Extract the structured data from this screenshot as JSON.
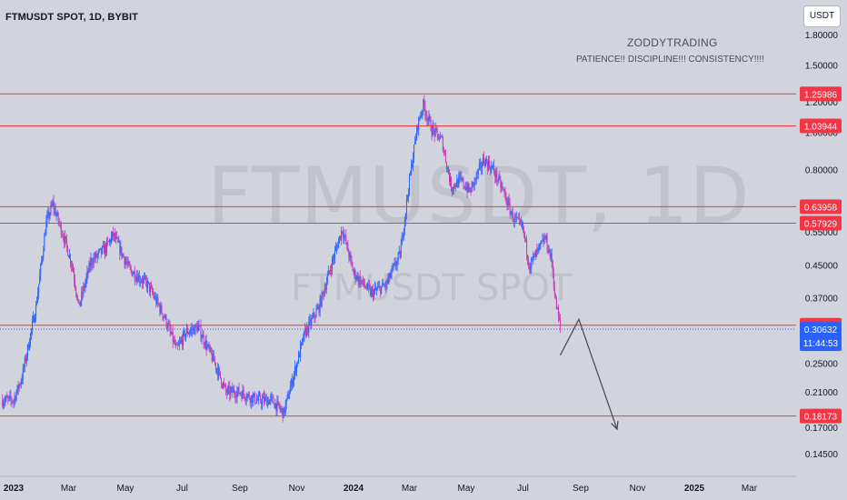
{
  "header": {
    "symbol_title": "FTMUSDT SPOT, 1D, BYBIT",
    "currency_button": "USDT"
  },
  "annotation": {
    "title": "ZODDYTRADING",
    "subtitle": "PATIENCE!! DISCIPLINE!!! CONSISTENCY!!!!"
  },
  "watermark": {
    "main": "FTMUSDT, 1D",
    "sub": "FTMUSDT SPOT"
  },
  "colors": {
    "background": "#d1d4dc",
    "bull_candle": "#2962ff",
    "bear_candle": "#c73ab5",
    "level_line": "#f23645",
    "current_price": "#2962ff",
    "projection": "#434651"
  },
  "chart_data": {
    "type": "candlestick",
    "symbol": "FTMUSDT",
    "interval": "1D",
    "exchange": "BYBIT",
    "y_scale": "log",
    "ylim": [
      0.13,
      2.0
    ],
    "y_ticks": [
      "1.80000",
      "1.50000",
      "1.20000",
      "1.00000",
      "0.80000",
      "0.65000",
      "0.55000",
      "0.45000",
      "0.37000",
      "0.30000",
      "0.25000",
      "0.21000",
      "0.17000",
      "0.14500"
    ],
    "x_ticks": [
      "2023",
      "Mar",
      "May",
      "Jul",
      "Sep",
      "Nov",
      "2024",
      "Mar",
      "May",
      "Jul",
      "Sep",
      "Nov",
      "2025",
      "Mar"
    ],
    "x_range": [
      "2022-12-20",
      "2025-04-12"
    ],
    "horizontal_levels": [
      {
        "price": 1.25986,
        "label": "1.25986"
      },
      {
        "price": 1.03944,
        "label": "1.03944"
      },
      {
        "price": 0.63958,
        "label": "0.63958"
      },
      {
        "price": 0.57929,
        "label": "0.57929"
      },
      {
        "price": 0.31381,
        "label": "0.31381"
      },
      {
        "price": 0.18173,
        "label": "0.18173"
      }
    ],
    "current_price": {
      "value": 0.30632,
      "label": "0.30632",
      "countdown": "11:44:53"
    },
    "price_path": [
      {
        "date": "2022-12-20",
        "price": 0.2
      },
      {
        "date": "2023-01-01",
        "price": 0.2
      },
      {
        "date": "2023-01-10",
        "price": 0.23
      },
      {
        "date": "2023-01-25",
        "price": 0.35
      },
      {
        "date": "2023-02-05",
        "price": 0.58
      },
      {
        "date": "2023-02-12",
        "price": 0.65
      },
      {
        "date": "2023-02-22",
        "price": 0.55
      },
      {
        "date": "2023-03-05",
        "price": 0.45
      },
      {
        "date": "2023-03-12",
        "price": 0.35
      },
      {
        "date": "2023-03-25",
        "price": 0.46
      },
      {
        "date": "2023-04-10",
        "price": 0.5
      },
      {
        "date": "2023-04-18",
        "price": 0.54
      },
      {
        "date": "2023-05-05",
        "price": 0.44
      },
      {
        "date": "2023-05-25",
        "price": 0.4
      },
      {
        "date": "2023-06-12",
        "price": 0.33
      },
      {
        "date": "2023-06-25",
        "price": 0.27
      },
      {
        "date": "2023-07-05",
        "price": 0.3
      },
      {
        "date": "2023-07-18",
        "price": 0.31
      },
      {
        "date": "2023-08-05",
        "price": 0.25
      },
      {
        "date": "2023-08-17",
        "price": 0.21
      },
      {
        "date": "2023-09-01",
        "price": 0.21
      },
      {
        "date": "2023-09-20",
        "price": 0.2
      },
      {
        "date": "2023-10-05",
        "price": 0.2
      },
      {
        "date": "2023-10-18",
        "price": 0.185
      },
      {
        "date": "2023-10-26",
        "price": 0.22
      },
      {
        "date": "2023-11-10",
        "price": 0.3
      },
      {
        "date": "2023-11-25",
        "price": 0.35
      },
      {
        "date": "2023-12-08",
        "price": 0.45
      },
      {
        "date": "2023-12-20",
        "price": 0.56
      },
      {
        "date": "2024-01-01",
        "price": 0.43
      },
      {
        "date": "2024-01-20",
        "price": 0.38
      },
      {
        "date": "2024-02-05",
        "price": 0.4
      },
      {
        "date": "2024-02-20",
        "price": 0.48
      },
      {
        "date": "2024-03-01",
        "price": 0.75
      },
      {
        "date": "2024-03-10",
        "price": 1.05
      },
      {
        "date": "2024-03-16",
        "price": 1.18
      },
      {
        "date": "2024-03-25",
        "price": 1.02
      },
      {
        "date": "2024-04-05",
        "price": 0.95
      },
      {
        "date": "2024-04-15",
        "price": 0.72
      },
      {
        "date": "2024-04-25",
        "price": 0.75
      },
      {
        "date": "2024-05-05",
        "price": 0.7
      },
      {
        "date": "2024-05-20",
        "price": 0.85
      },
      {
        "date": "2024-05-30",
        "price": 0.8
      },
      {
        "date": "2024-06-10",
        "price": 0.7
      },
      {
        "date": "2024-06-20",
        "price": 0.6
      },
      {
        "date": "2024-07-01",
        "price": 0.56
      },
      {
        "date": "2024-07-08",
        "price": 0.45
      },
      {
        "date": "2024-07-15",
        "price": 0.48
      },
      {
        "date": "2024-07-25",
        "price": 0.53
      },
      {
        "date": "2024-08-01",
        "price": 0.46
      },
      {
        "date": "2024-08-05",
        "price": 0.36
      },
      {
        "date": "2024-08-10",
        "price": 0.31
      }
    ],
    "projection_path": [
      {
        "date": "2024-08-10",
        "price": 0.262
      },
      {
        "date": "2024-08-30",
        "price": 0.325
      },
      {
        "date": "2024-10-10",
        "price": 0.168
      }
    ]
  }
}
